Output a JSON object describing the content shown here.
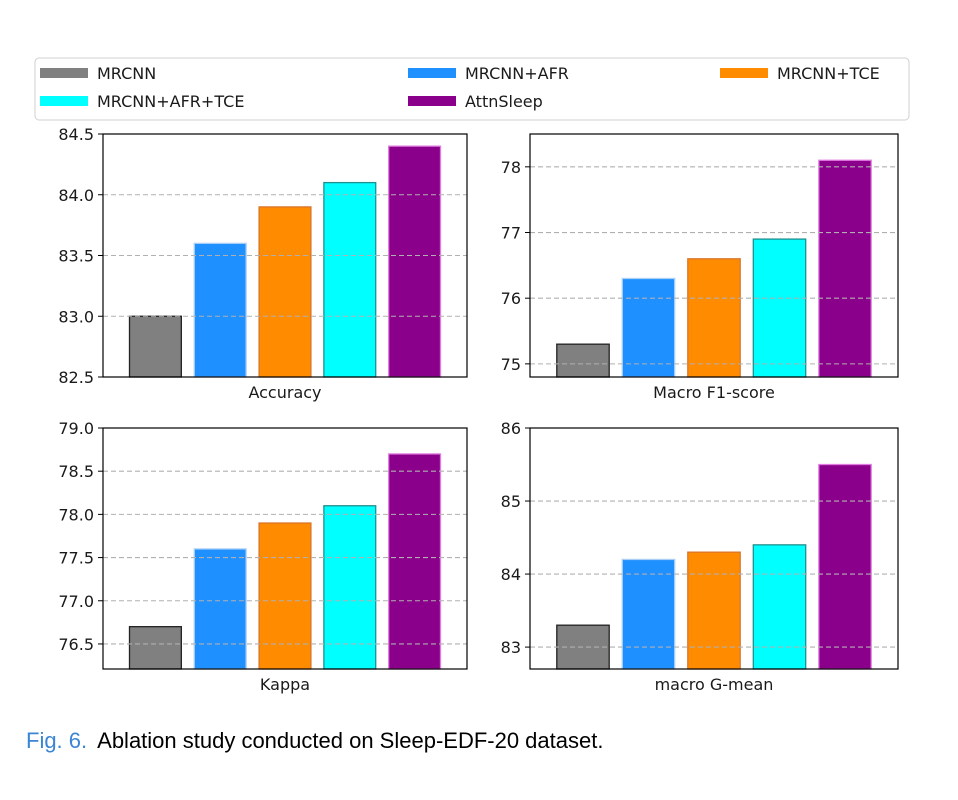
{
  "caption": {
    "label": "Fig. 6.",
    "text": "Ablation study conducted on Sleep-EDF-20 dataset.",
    "label_color": "#3a86d4"
  },
  "legend": {
    "placement": "top",
    "entries": [
      {
        "name": "MRCNN",
        "color": "#808080"
      },
      {
        "name": "MRCNN+AFR",
        "color": "#1e90ff"
      },
      {
        "name": "MRCNN+TCE",
        "color": "#ff8c00"
      },
      {
        "name": "MRCNN+AFR+TCE",
        "color": "#00ffff"
      },
      {
        "name": "AttnSleep",
        "color": "#8b008b"
      }
    ]
  },
  "chart_data": [
    {
      "type": "bar",
      "title": "",
      "xlabel": "Accuracy",
      "ylabel": "",
      "categories": [
        "MRCNN",
        "MRCNN+AFR",
        "MRCNN+TCE",
        "MRCNN+AFR+TCE",
        "AttnSleep"
      ],
      "values": [
        83.0,
        83.6,
        83.9,
        84.1,
        84.4
      ],
      "ylim": [
        82.5,
        84.5
      ],
      "yticks": [
        82.5,
        83.0,
        83.5,
        84.0,
        84.5
      ],
      "ytick_labels": [
        "82.5",
        "83.0",
        "83.5",
        "84.0",
        "84.5"
      ],
      "grid": "y-dashed"
    },
    {
      "type": "bar",
      "title": "",
      "xlabel": "Macro F1-score",
      "ylabel": "",
      "categories": [
        "MRCNN",
        "MRCNN+AFR",
        "MRCNN+TCE",
        "MRCNN+AFR+TCE",
        "AttnSleep"
      ],
      "values": [
        75.3,
        76.3,
        76.6,
        76.9,
        78.1
      ],
      "ylim": [
        74.8,
        78.5
      ],
      "yticks": [
        75,
        76,
        77,
        78
      ],
      "ytick_labels": [
        "75",
        "76",
        "77",
        "78"
      ],
      "grid": "y-dashed"
    },
    {
      "type": "bar",
      "title": "",
      "xlabel": "Kappa",
      "ylabel": "",
      "categories": [
        "MRCNN",
        "MRCNN+AFR",
        "MRCNN+TCE",
        "MRCNN+AFR+TCE",
        "AttnSleep"
      ],
      "values": [
        76.7,
        77.6,
        77.9,
        78.1,
        78.7
      ],
      "ylim": [
        76.21,
        79.0
      ],
      "yticks": [
        76.5,
        77.0,
        77.5,
        78.0,
        78.5,
        79.0
      ],
      "ytick_labels": [
        "76.5",
        "77.0",
        "77.5",
        "78.0",
        "78.5",
        "79.0"
      ],
      "grid": "y-dashed"
    },
    {
      "type": "bar",
      "title": "",
      "xlabel": "macro G-mean",
      "ylabel": "",
      "categories": [
        "MRCNN",
        "MRCNN+AFR",
        "MRCNN+TCE",
        "MRCNN+AFR+TCE",
        "AttnSleep"
      ],
      "values": [
        83.3,
        84.2,
        84.3,
        84.4,
        85.5
      ],
      "ylim": [
        82.7,
        86.0
      ],
      "yticks": [
        83,
        84,
        85,
        86
      ],
      "ytick_labels": [
        "83",
        "84",
        "85",
        "86"
      ],
      "grid": "y-dashed"
    }
  ]
}
